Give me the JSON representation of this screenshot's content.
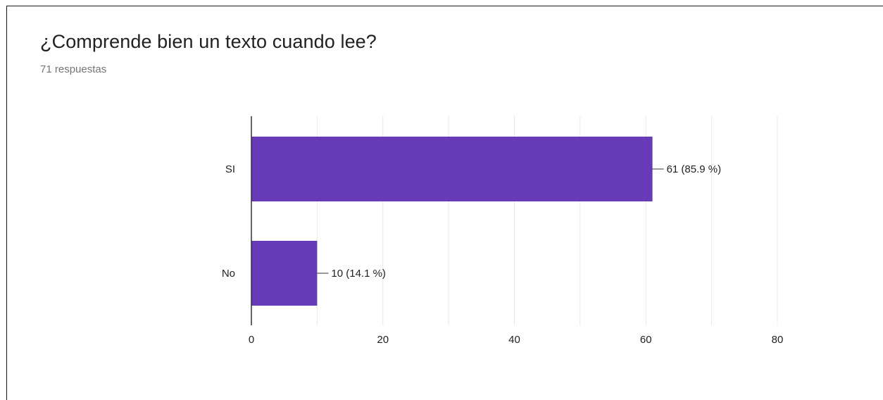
{
  "question": {
    "title": "¿Comprende bien un texto cuando lee?",
    "responses": "71 respuestas"
  },
  "colors": {
    "bar": "#673ab7",
    "grid": "#e8e8e8",
    "axis": "#333333",
    "text": "#222222"
  },
  "chart_data": {
    "type": "bar",
    "orientation": "horizontal",
    "categories": [
      "SI",
      "No"
    ],
    "values": [
      61,
      10
    ],
    "data_labels": [
      "61 (85.9 %)",
      "10 (14.1 %)"
    ],
    "xlim": [
      0,
      80
    ],
    "xticks": [
      0,
      20,
      40,
      60,
      80
    ],
    "grid": true,
    "legend": false
  }
}
